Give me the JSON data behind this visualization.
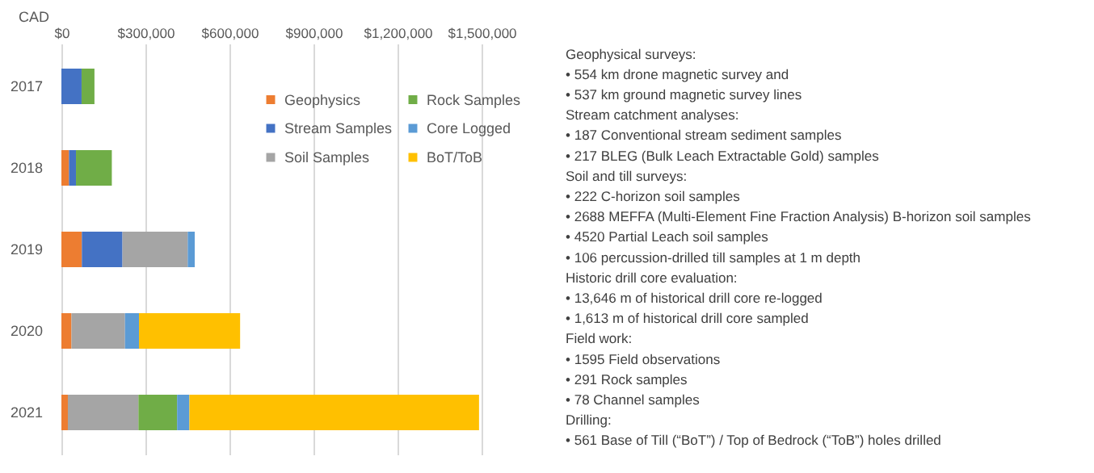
{
  "chart_data": [
    {
      "type": "bar",
      "orientation": "horizontal",
      "stacked": true,
      "ylabel": "CAD",
      "categories": [
        "2017",
        "2018",
        "2019",
        "2020",
        "2021"
      ],
      "series": [
        {
          "name": "Geophysics",
          "color": "#ed7d31",
          "values": [
            null,
            27000,
            73000,
            36000,
            23000
          ]
        },
        {
          "name": "Stream Samples",
          "color": "#4472c4",
          "values": [
            72000,
            25000,
            145000,
            null,
            null
          ]
        },
        {
          "name": "Soil Samples",
          "color": "#a5a5a5",
          "values": [
            null,
            null,
            233000,
            191000,
            252000
          ]
        },
        {
          "name": "Rock Samples",
          "color": "#70ad47",
          "values": [
            46000,
            128000,
            null,
            null,
            138000
          ]
        },
        {
          "name": "Core Logged",
          "color": "#5b9bd5",
          "values": [
            null,
            null,
            25000,
            50000,
            44000
          ]
        },
        {
          "name": "BoT/ToB",
          "color": "#ffc000",
          "values": [
            null,
            null,
            null,
            361000,
            1034000
          ]
        }
      ],
      "xlim": [
        0,
        1500000
      ],
      "xticks": [
        {
          "value": 0,
          "label": "$0"
        },
        {
          "value": 300000,
          "label": "$300,000"
        },
        {
          "value": 600000,
          "label": "$600,000"
        },
        {
          "value": 900000,
          "label": "$900,000"
        },
        {
          "value": 1200000,
          "label": "$1,200,000"
        },
        {
          "value": 1500000,
          "label": "$1,500,000"
        }
      ],
      "grid": "x",
      "legend": "top right"
    },
    {
      "type": "other",
      "annotations": [
        "Geophysical surveys:",
        "• 554 km drone magnetic survey and",
        "• 537 km ground magnetic survey lines",
        "Stream catchment analyses:",
        "• 187 Conventional stream sediment samples",
        "• 217 BLEG (Bulk Leach Extractable Gold) samples",
        "Soil and till surveys:",
        "• 222 C-horizon soil samples",
        "• 2688 MEFFA (Multi-Element Fine Fraction Analysis) B-horizon soil samples",
        "• 4520 Partial Leach soil samples",
        "• 106 percussion-drilled till samples at 1 m depth",
        "Historic drill core evaluation:",
        "• 13,646 m of historical drill core re-logged",
        "• 1,613 m of historical drill core sampled",
        "Field work:",
        "• 1595 Field observations",
        "• 291 Rock samples",
        "• 78 Channel samples",
        "Drilling:",
        "• 561 Base of Till (“BoT”) / Top of Bedrock (“ToB”) holes drilled"
      ]
    }
  ]
}
